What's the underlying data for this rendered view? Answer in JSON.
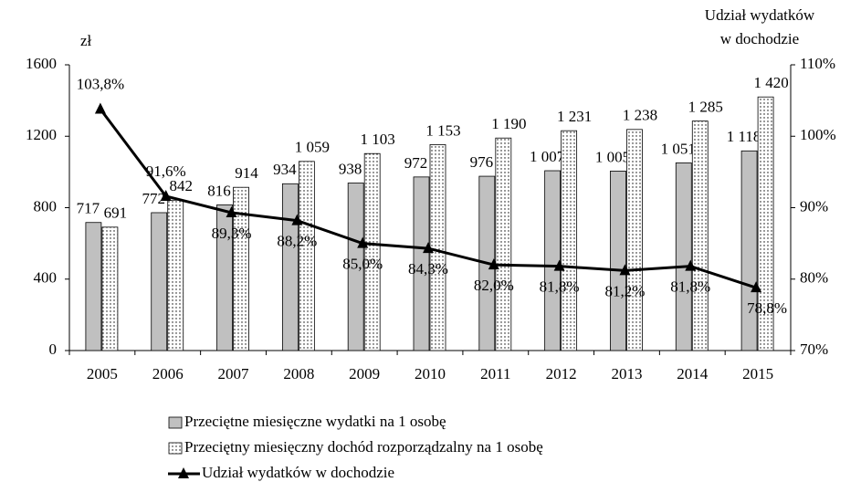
{
  "chart_data": {
    "type": "combo",
    "ylabel": "zł",
    "y2label": [
      "Udział wydatków",
      "w dochodzie"
    ],
    "categories": [
      "2005",
      "2006",
      "2007",
      "2008",
      "2009",
      "2010",
      "2011",
      "2012",
      "2013",
      "2014",
      "2015"
    ],
    "ylim": [
      0,
      1600
    ],
    "yticks": [
      0,
      400,
      800,
      1200,
      1600
    ],
    "y2lim": [
      70,
      110
    ],
    "y2ticks": [
      {
        "value": 70,
        "label": "70%"
      },
      {
        "value": 80,
        "label": "80%"
      },
      {
        "value": 90,
        "label": "90%"
      },
      {
        "value": 100,
        "label": "100%"
      },
      {
        "value": 110,
        "label": "110%"
      }
    ],
    "series": [
      {
        "name": "Przeciętne miesięczne wydatki na 1 osobę",
        "type": "bar",
        "color": "#c0c0c0",
        "values": [
          717,
          772,
          816,
          934,
          938,
          972,
          976,
          1007,
          1005,
          1051,
          1118
        ],
        "value_labels": [
          "717",
          "772",
          "816",
          "934",
          "938",
          "972",
          "976",
          "1 007",
          "1 005",
          "1 051",
          "1 118"
        ]
      },
      {
        "name": "Przeciętny miesięczny dochód rozporządzalny na 1 osobę",
        "type": "bar",
        "color": "#ffffff",
        "pattern": "dots",
        "values": [
          691,
          842,
          914,
          1059,
          1103,
          1153,
          1190,
          1231,
          1238,
          1285,
          1420
        ],
        "value_labels": [
          "691",
          "842",
          "914",
          "1 059",
          "1 103",
          "1 153",
          "1 190",
          "1 231",
          "1 238",
          "1 285",
          "1 420"
        ]
      },
      {
        "name": "Udział wydatków w dochodzie",
        "type": "line",
        "axis": "y2",
        "color": "#000000",
        "values": [
          103.8,
          91.6,
          89.3,
          88.2,
          85.0,
          84.3,
          82.0,
          81.8,
          81.2,
          81.8,
          78.8
        ],
        "value_labels": [
          "103,8%",
          "91,6%",
          "89,3%",
          "88,2%",
          "85,0%",
          "84,3%",
          "82,0%",
          "81,8%",
          "81,2%",
          "81,8%",
          "78,8%"
        ]
      }
    ]
  }
}
